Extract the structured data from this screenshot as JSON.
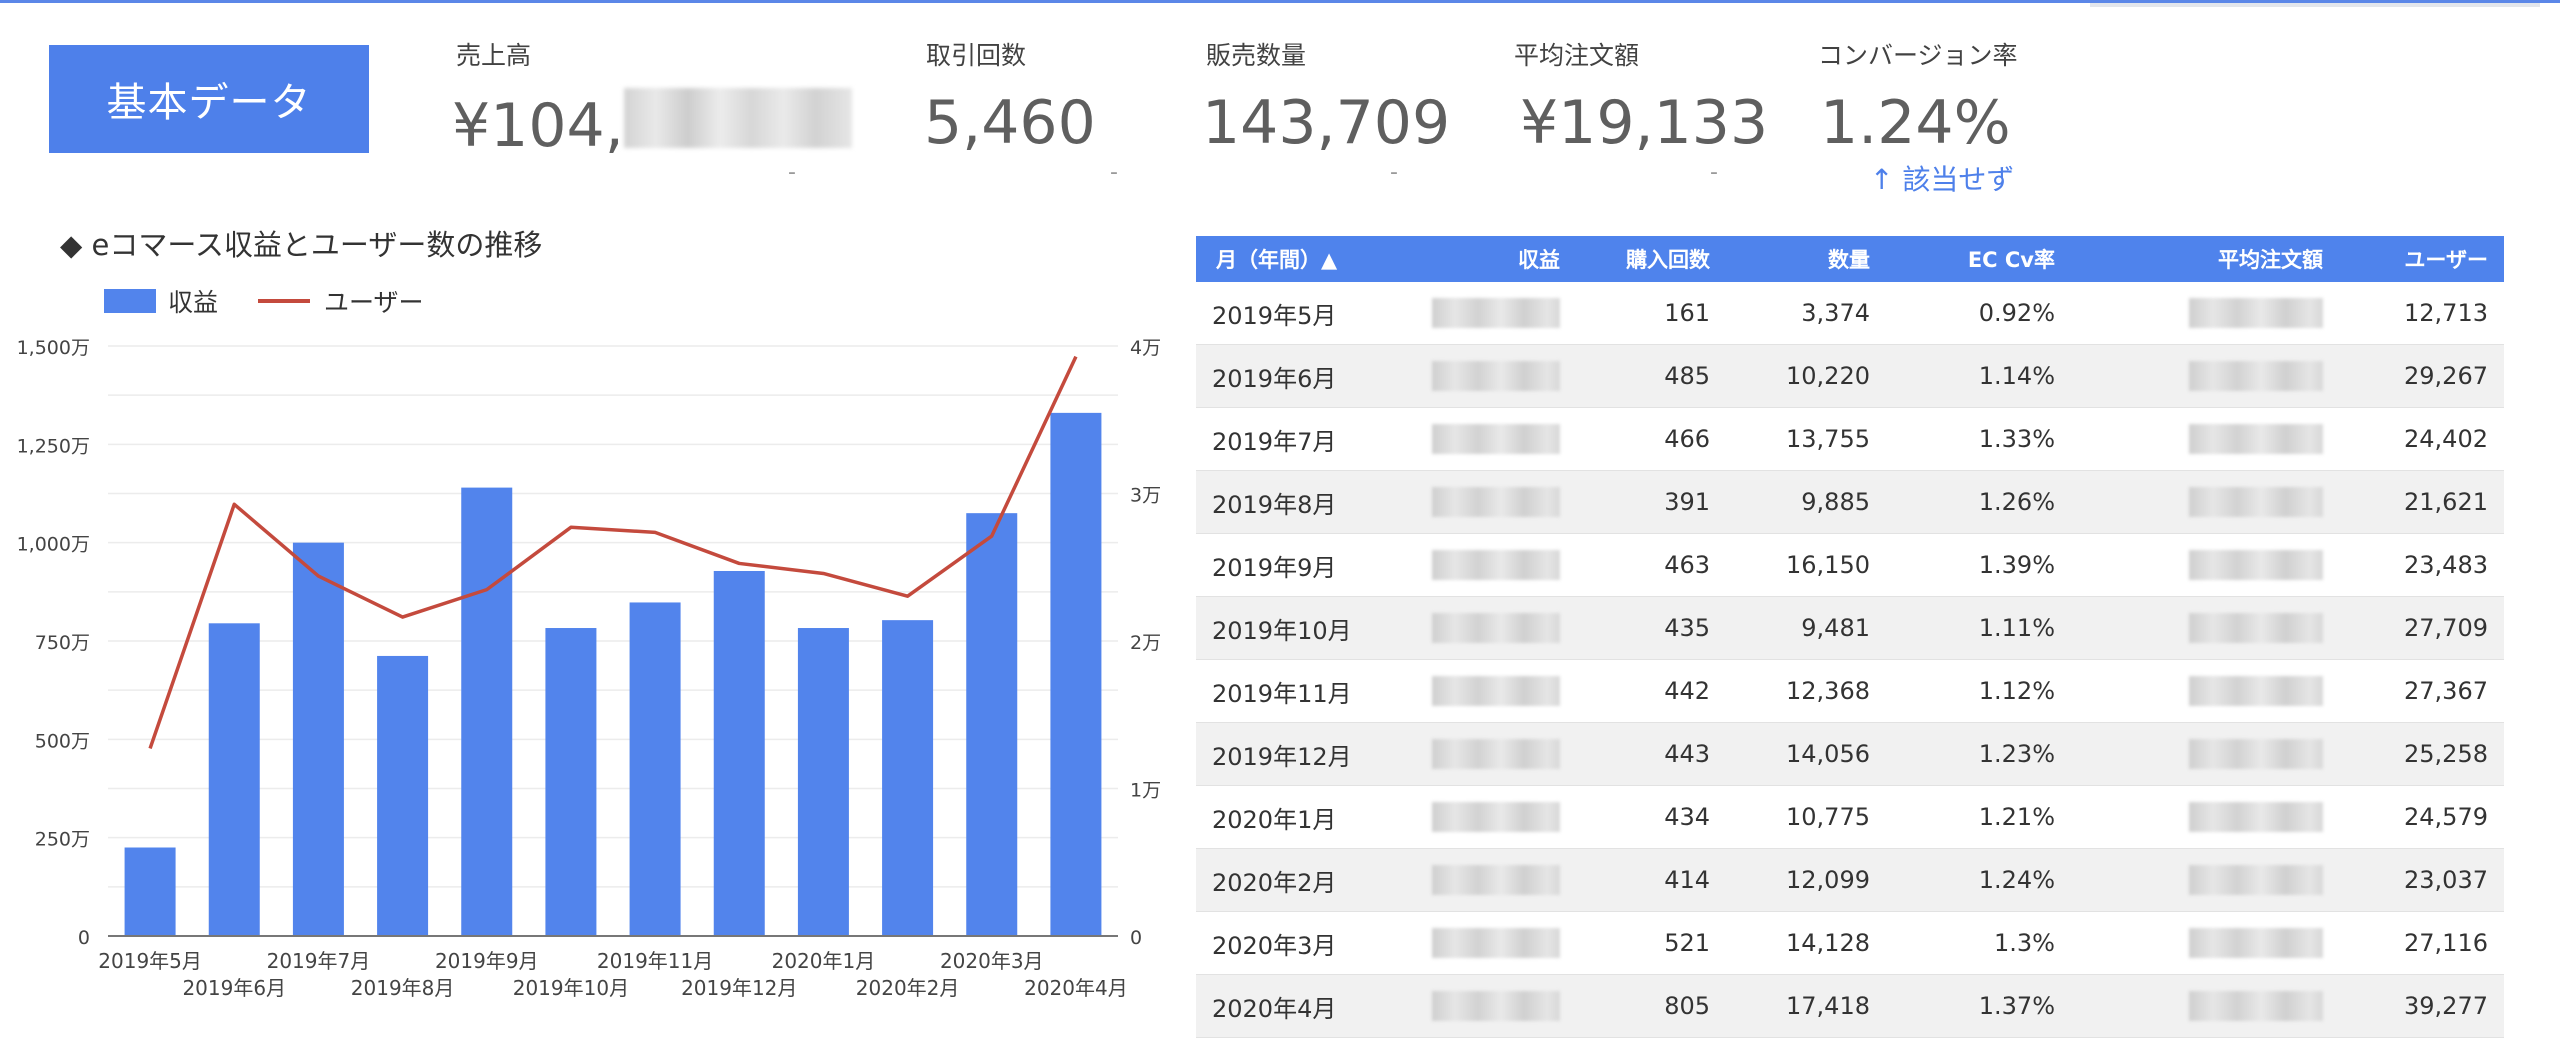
{
  "badge": "基本データ",
  "kpis": [
    {
      "label": "売上高",
      "value": "¥104,",
      "redacted": true,
      "delta": "-"
    },
    {
      "label": "取引回数",
      "value": "5,460",
      "delta": "-"
    },
    {
      "label": "販売数量",
      "value": "143,709",
      "delta": "-"
    },
    {
      "label": "平均注文額",
      "value": "¥19,133",
      "delta": "-"
    },
    {
      "label": "コンバージョン率",
      "value": "1.24%",
      "note": "↑ 該当せず"
    }
  ],
  "chart_data": {
    "type": "bar",
    "title": "◆ eコマース収益とユーザー数の推移",
    "categories": [
      "2019年5月",
      "2019年6月",
      "2019年7月",
      "2019年8月",
      "2019年9月",
      "2019年10月",
      "2019年11月",
      "2019年12月",
      "2020年1月",
      "2020年2月",
      "2020年3月",
      "2020年4月"
    ],
    "series": [
      {
        "name": "収益",
        "type": "bar",
        "axis": "left",
        "color": "#5284ec",
        "values": [
          225,
          795,
          1000,
          712,
          1140,
          783,
          848,
          928,
          783,
          803,
          1075,
          1330
        ]
      },
      {
        "name": "ユーザー",
        "type": "line",
        "axis": "right",
        "color": "#c44a3d",
        "values": [
          12713,
          29267,
          24402,
          21621,
          23483,
          27709,
          27367,
          25258,
          24579,
          23037,
          27116,
          39277
        ]
      }
    ],
    "y_left": {
      "min": 0,
      "max": 1500,
      "ticks": [
        0,
        250,
        500,
        750,
        1000,
        1250,
        1500
      ],
      "tick_labels": [
        "0",
        "250万",
        "500万",
        "750万",
        "1,000万",
        "1,250万",
        "1,500万"
      ]
    },
    "y_right": {
      "min": 0,
      "max": 40000,
      "ticks": [
        0,
        10000,
        20000,
        30000,
        40000
      ],
      "tick_labels": [
        "0",
        "1万",
        "2万",
        "3万",
        "4万"
      ]
    },
    "grid": true,
    "legend": "top-left"
  },
  "table": {
    "columns": [
      "月（年間）▲",
      "収益",
      "購入回数",
      "数量",
      "EC Cv率",
      "平均注文額",
      "ユーザー"
    ],
    "rows": [
      [
        "2019年5月",
        "",
        "161",
        "3,374",
        "0.92%",
        "",
        "12,713"
      ],
      [
        "2019年6月",
        "",
        "485",
        "10,220",
        "1.14%",
        "",
        "29,267"
      ],
      [
        "2019年7月",
        "",
        "466",
        "13,755",
        "1.33%",
        "",
        "24,402"
      ],
      [
        "2019年8月",
        "",
        "391",
        "9,885",
        "1.26%",
        "",
        "21,621"
      ],
      [
        "2019年9月",
        "",
        "463",
        "16,150",
        "1.39%",
        "",
        "23,483"
      ],
      [
        "2019年10月",
        "",
        "435",
        "9,481",
        "1.11%",
        "",
        "27,709"
      ],
      [
        "2019年11月",
        "",
        "442",
        "12,368",
        "1.12%",
        "",
        "27,367"
      ],
      [
        "2019年12月",
        "",
        "443",
        "14,056",
        "1.23%",
        "",
        "25,258"
      ],
      [
        "2020年1月",
        "",
        "434",
        "10,775",
        "1.21%",
        "",
        "24,579"
      ],
      [
        "2020年2月",
        "",
        "414",
        "12,099",
        "1.24%",
        "",
        "23,037"
      ],
      [
        "2020年3月",
        "",
        "521",
        "14,128",
        "1.3%",
        "",
        "27,116"
      ],
      [
        "2020年4月",
        "",
        "805",
        "17,418",
        "1.37%",
        "",
        "39,277"
      ]
    ],
    "redacted_columns": [
      1,
      5
    ]
  }
}
